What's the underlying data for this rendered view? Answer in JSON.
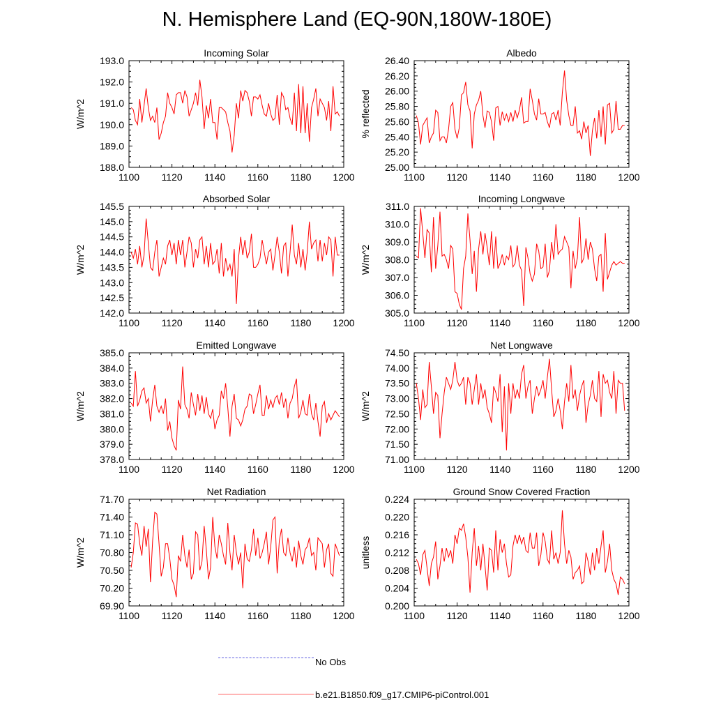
{
  "title": "N. Hemisphere Land (EQ-90N,180W-180E)",
  "legend": [
    {
      "label": "No Obs",
      "color": "#4a4ad0",
      "style": "dashed"
    },
    {
      "label": "b.e21.B1850.f09_g17.CMIP6-piControl.001",
      "color": "#ff0000",
      "style": "solid"
    }
  ],
  "chart_data": [
    {
      "type": "line",
      "title": "Incoming Solar",
      "xlabel": "",
      "ylabel": "W/m^2",
      "xlim": [
        1100,
        1200
      ],
      "ylim": [
        188.0,
        193.0
      ],
      "xticks": [
        "1100",
        "1120",
        "1140",
        "1160",
        "1180",
        "1200"
      ],
      "yticks": [
        "188.0",
        "189.0",
        "190.0",
        "191.0",
        "192.0",
        "193.0"
      ],
      "x_start": 1101,
      "color": "#ff0000",
      "values": [
        190.8,
        190.7,
        190.2,
        190.0,
        191.2,
        190.1,
        190.9,
        191.7,
        190.8,
        190.2,
        190.4,
        190.1,
        190.8,
        189.3,
        189.6,
        190.1,
        190.4,
        191.5,
        191.0,
        190.8,
        190.5,
        191.4,
        191.5,
        191.5,
        191.0,
        191.6,
        191.3,
        190.4,
        190.7,
        191.0,
        191.5,
        190.9,
        192.1,
        191.3,
        189.8,
        190.9,
        190.3,
        191.2,
        190.1,
        190.1,
        189.3,
        190.8,
        190.8,
        190.7,
        190.6,
        190.1,
        189.7,
        188.7,
        189.5,
        191.0,
        190.3,
        191.6,
        191.1,
        191.6,
        191.5,
        191.1,
        190.4,
        191.3,
        191.3,
        191.2,
        191.4,
        190.9,
        190.5,
        190.4,
        191.0,
        190.5,
        190.2,
        190.3,
        191.4,
        190.0,
        191.5,
        191.3,
        190.7,
        190.8,
        190.3,
        190.0,
        191.5,
        189.7,
        191.9,
        189.6,
        191.8,
        189.6,
        191.0,
        189.2,
        190.8,
        191.2,
        191.7,
        190.4,
        191.2,
        191.0,
        190.8,
        190.2,
        191.1,
        189.7,
        191.8,
        190.5,
        190.6,
        190.4
      ]
    },
    {
      "type": "line",
      "title": "Albedo",
      "xlabel": "",
      "ylabel": "% reflected",
      "xlim": [
        1100,
        1200
      ],
      "ylim": [
        25.0,
        26.4
      ],
      "xticks": [
        "1100",
        "1120",
        "1140",
        "1160",
        "1180",
        "1200"
      ],
      "yticks": [
        "25.00",
        "25.20",
        "25.40",
        "25.60",
        "25.80",
        "26.00",
        "26.20",
        "26.40"
      ],
      "x_start": 1101,
      "color": "#ff0000",
      "values": [
        25.68,
        25.58,
        25.3,
        25.55,
        25.6,
        25.65,
        25.32,
        25.4,
        25.45,
        25.75,
        25.72,
        25.35,
        25.4,
        25.4,
        25.32,
        25.5,
        25.8,
        25.85,
        25.5,
        25.38,
        25.52,
        25.95,
        25.98,
        26.12,
        25.82,
        25.74,
        25.25,
        25.7,
        25.82,
        25.88,
        26.0,
        25.68,
        25.52,
        25.74,
        25.72,
        25.6,
        25.35,
        25.78,
        25.8,
        25.55,
        25.73,
        25.62,
        25.7,
        25.6,
        25.72,
        25.6,
        25.75,
        25.65,
        25.75,
        25.92,
        25.58,
        25.6,
        25.6,
        26.03,
        25.88,
        25.7,
        25.62,
        25.9,
        25.7,
        25.7,
        25.72,
        25.6,
        25.52,
        25.7,
        25.72,
        25.62,
        25.75,
        25.55,
        25.98,
        26.27,
        25.88,
        25.68,
        25.55,
        25.55,
        25.8,
        25.45,
        25.48,
        25.37,
        25.6,
        25.45,
        25.55,
        25.15,
        25.48,
        25.65,
        25.38,
        25.75,
        25.4,
        25.8,
        25.3,
        25.82,
        25.84,
        25.45,
        25.5,
        25.87,
        25.5,
        25.5,
        25.55,
        25.55
      ]
    },
    {
      "type": "line",
      "title": "Absorbed Solar",
      "xlabel": "",
      "ylabel": "W/m^2",
      "xlim": [
        1100,
        1200
      ],
      "ylim": [
        142.0,
        145.5
      ],
      "xticks": [
        "1100",
        "1120",
        "1140",
        "1160",
        "1180",
        "1200"
      ],
      "yticks": [
        "142.0",
        "142.5",
        "143.0",
        "143.5",
        "144.0",
        "144.5",
        "145.0",
        "145.5"
      ],
      "x_start": 1101,
      "color": "#ff0000",
      "values": [
        144.0,
        143.8,
        144.1,
        143.6,
        144.2,
        143.5,
        143.9,
        145.1,
        144.3,
        143.5,
        143.4,
        144.0,
        144.4,
        143.2,
        143.5,
        143.8,
        143.6,
        144.2,
        144.4,
        143.9,
        144.3,
        143.6,
        144.4,
        143.9,
        144.4,
        143.5,
        144.0,
        144.5,
        144.3,
        143.5,
        144.1,
        143.8,
        144.4,
        144.5,
        143.6,
        144.2,
        143.5,
        144.3,
        143.6,
        143.7,
        144.1,
        143.3,
        144.3,
        143.2,
        143.8,
        143.4,
        143.6,
        143.2,
        144.1,
        142.3,
        143.8,
        144.5,
        143.9,
        144.4,
        143.8,
        144.0,
        144.6,
        143.5,
        143.5,
        143.6,
        143.8,
        144.4,
        144.0,
        143.6,
        144.0,
        144.1,
        143.4,
        143.9,
        144.5,
        144.0,
        143.3,
        144.2,
        144.3,
        143.2,
        144.0,
        144.9,
        143.9,
        143.6,
        144.3,
        143.5,
        144.1,
        143.4,
        144.0,
        145.0,
        144.1,
        144.3,
        144.4,
        143.7,
        144.4,
        143.7,
        144.3,
        143.9,
        144.5,
        144.4,
        143.2,
        144.5,
        143.9,
        143.9
      ]
    },
    {
      "type": "line",
      "title": "Incoming Longwave",
      "xlabel": "",
      "ylabel": "W/m^2",
      "xlim": [
        1100,
        1200
      ],
      "ylim": [
        305.0,
        311.0
      ],
      "xticks": [
        "1100",
        "1120",
        "1140",
        "1160",
        "1180",
        "1200"
      ],
      "yticks": [
        "305.0",
        "306.0",
        "307.0",
        "308.0",
        "309.0",
        "310.0",
        "311.0"
      ],
      "x_start": 1101,
      "color": "#ff0000",
      "values": [
        308.2,
        308.1,
        310.9,
        309.5,
        308.1,
        309.7,
        309.5,
        307.3,
        310.4,
        307.5,
        308.8,
        310.7,
        308.2,
        308.3,
        308.0,
        307.5,
        308.8,
        308.6,
        306.2,
        306.1,
        305.5,
        305.2,
        307.5,
        308.2,
        310.6,
        309.1,
        307.2,
        308.5,
        306.2,
        308.6,
        309.6,
        308.3,
        309.5,
        308.7,
        307.7,
        309.6,
        307.5,
        309.3,
        307.5,
        307.8,
        308.3,
        307.7,
        308.2,
        308.0,
        308.8,
        307.6,
        307.8,
        308.8,
        307.7,
        307.4,
        305.4,
        308.7,
        308.1,
        307.2,
        306.8,
        307.2,
        308.9,
        308.5,
        307.5,
        307.6,
        308.9,
        307.0,
        307.4,
        309.0,
        308.0,
        310.0,
        308.3,
        308.5,
        308.6,
        309.3,
        309.0,
        308.7,
        306.4,
        308.5,
        307.5,
        308.1,
        310.4,
        307.8,
        308.1,
        309.2,
        308.0,
        309.0,
        308.6,
        307.5,
        306.8,
        308.2,
        308.3,
        306.2,
        309.5,
        306.9,
        307.3,
        307.7,
        307.9,
        307.7,
        307.8,
        307.9,
        307.8,
        307.8
      ]
    },
    {
      "type": "line",
      "title": "Emitted Longwave",
      "xlabel": "",
      "ylabel": "W/m^2",
      "xlim": [
        1100,
        1200
      ],
      "ylim": [
        378.0,
        385.0
      ],
      "xticks": [
        "1100",
        "1120",
        "1140",
        "1160",
        "1180",
        "1200"
      ],
      "yticks": [
        "378.0",
        "379.0",
        "380.0",
        "381.0",
        "382.0",
        "383.0",
        "384.0",
        "385.0"
      ],
      "x_start": 1101,
      "color": "#ff0000",
      "values": [
        381.7,
        381.5,
        383.8,
        381.5,
        381.9,
        382.5,
        382.7,
        381.7,
        382.0,
        380.5,
        381.9,
        382.9,
        381.5,
        381.1,
        381.5,
        381.0,
        382.0,
        379.9,
        380.5,
        379.4,
        378.9,
        378.6,
        381.9,
        381.3,
        384.1,
        381.6,
        381.3,
        380.7,
        382.4,
        381.6,
        380.9,
        382.3,
        381.2,
        382.2,
        381.0,
        382.1,
        381.0,
        380.7,
        381.3,
        380.0,
        380.6,
        380.9,
        382.5,
        382.0,
        383.0,
        381.4,
        379.5,
        381.5,
        382.3,
        380.7,
        380.6,
        380.2,
        380.6,
        381.3,
        381.5,
        382.3,
        382.2,
        381.0,
        381.6,
        382.3,
        382.9,
        380.9,
        380.9,
        382.2,
        381.3,
        381.9,
        381.4,
        382.0,
        382.2,
        381.6,
        382.4,
        381.4,
        382.0,
        380.7,
        381.7,
        382.0,
        382.8,
        383.3,
        380.7,
        381.1,
        381.9,
        381.0,
        380.9,
        382.3,
        381.0,
        380.6,
        381.7,
        380.5,
        379.5,
        381.5,
        381.8,
        380.4,
        381.0,
        380.6,
        380.9,
        381.2,
        381.0,
        380.8
      ]
    },
    {
      "type": "line",
      "title": "Net Longwave",
      "xlabel": "",
      "ylabel": "W/m^2",
      "xlim": [
        1100,
        1200
      ],
      "ylim": [
        71.0,
        74.5
      ],
      "xticks": [
        "1100",
        "1120",
        "1140",
        "1160",
        "1180",
        "1200"
      ],
      "yticks": [
        "71.00",
        "71.50",
        "72.00",
        "72.50",
        "73.00",
        "73.50",
        "74.00",
        "74.50"
      ],
      "x_start": 1101,
      "color": "#ff0000",
      "values": [
        73.5,
        73.0,
        72.3,
        73.3,
        72.7,
        72.8,
        74.2,
        73.4,
        72.5,
        73.2,
        73.1,
        71.7,
        72.5,
        73.2,
        73.7,
        73.5,
        73.3,
        73.6,
        74.2,
        73.6,
        73.4,
        73.5,
        73.7,
        72.8,
        73.7,
        73.5,
        72.8,
        73.3,
        73.8,
        72.8,
        73.5,
        73.0,
        73.3,
        72.7,
        72.5,
        72.2,
        73.4,
        73.2,
        72.9,
        73.8,
        71.9,
        73.4,
        71.3,
        73.5,
        72.5,
        73.5,
        73.0,
        73.3,
        73.0,
        73.8,
        74.1,
        73.0,
        73.4,
        73.6,
        72.5,
        73.0,
        73.4,
        73.1,
        73.3,
        73.6,
        73.0,
        73.7,
        74.3,
        73.3,
        72.4,
        72.6,
        73.0,
        72.6,
        72.0,
        72.9,
        73.5,
        72.9,
        74.1,
        73.0,
        73.3,
        72.6,
        73.1,
        73.4,
        73.6,
        72.2,
        72.8,
        73.1,
        73.6,
        73.0,
        72.9,
        73.9,
        72.4,
        73.8,
        73.5,
        73.6,
        73.2,
        73.0,
        73.9,
        72.5,
        73.6,
        73.5,
        73.5,
        72.6
      ]
    },
    {
      "type": "line",
      "title": "Net Radiation",
      "xlabel": "",
      "ylabel": "W/m^2",
      "xlim": [
        1100,
        1200
      ],
      "ylim": [
        69.9,
        71.7
      ],
      "xticks": [
        "1100",
        "1120",
        "1140",
        "1160",
        "1180",
        "1200"
      ],
      "yticks": [
        "69.90",
        "70.20",
        "70.50",
        "70.80",
        "71.10",
        "71.40",
        "71.70"
      ],
      "x_start": 1101,
      "color": "#ff0000",
      "values": [
        70.55,
        70.8,
        71.3,
        71.28,
        70.95,
        70.75,
        71.25,
        70.9,
        71.2,
        70.3,
        71.0,
        71.48,
        71.45,
        70.95,
        70.4,
        70.55,
        70.95,
        70.95,
        70.7,
        70.35,
        70.25,
        70.05,
        70.75,
        70.65,
        71.1,
        70.75,
        70.55,
        70.85,
        70.35,
        70.45,
        71.15,
        71.1,
        70.5,
        70.65,
        71.25,
        70.85,
        70.35,
        70.55,
        71.4,
        70.9,
        70.7,
        71.1,
        70.95,
        70.75,
        70.6,
        71.3,
        70.8,
        70.5,
        71.1,
        70.8,
        70.6,
        70.8,
        70.2,
        70.95,
        70.7,
        70.65,
        70.85,
        71.2,
        70.75,
        71.05,
        70.7,
        70.8,
        70.95,
        71.15,
        70.6,
        70.9,
        71.35,
        71.4,
        70.45,
        71.0,
        71.2,
        70.8,
        70.75,
        71.05,
        70.8,
        70.65,
        70.9,
        70.55,
        71.0,
        70.75,
        70.6,
        70.85,
        70.9,
        71.05,
        70.75,
        70.8,
        70.5,
        71.05,
        71.0,
        70.95,
        70.55,
        70.85,
        70.95,
        70.45,
        70.4,
        70.95,
        70.85,
        70.75
      ]
    },
    {
      "type": "line",
      "title": "Ground Snow Covered Fraction",
      "xlabel": "",
      "ylabel": "unitless",
      "xlim": [
        1100,
        1200
      ],
      "ylim": [
        0.2,
        0.224
      ],
      "xticks": [
        "1100",
        "1120",
        "1140",
        "1160",
        "1180",
        "1200"
      ],
      "yticks": [
        "0.200",
        "0.204",
        "0.208",
        "0.212",
        "0.216",
        "0.220",
        "0.224"
      ],
      "x_start": 1101,
      "color": "#ff0000",
      "values": [
        0.2105,
        0.2095,
        0.207,
        0.2115,
        0.2125,
        0.2085,
        0.2045,
        0.2095,
        0.211,
        0.2145,
        0.206,
        0.209,
        0.213,
        0.21,
        0.213,
        0.211,
        0.2125,
        0.2095,
        0.216,
        0.214,
        0.2175,
        0.217,
        0.2185,
        0.2155,
        0.211,
        0.203,
        0.212,
        0.2175,
        0.209,
        0.2135,
        0.208,
        0.214,
        0.209,
        0.2035,
        0.213,
        0.2125,
        0.2075,
        0.217,
        0.208,
        0.215,
        0.212,
        0.214,
        0.2095,
        0.2065,
        0.207,
        0.2135,
        0.216,
        0.214,
        0.216,
        0.214,
        0.2155,
        0.2125,
        0.212,
        0.2165,
        0.213,
        0.213,
        0.2165,
        0.209,
        0.2115,
        0.2165,
        0.2145,
        0.2105,
        0.2095,
        0.217,
        0.2105,
        0.212,
        0.2095,
        0.212,
        0.2215,
        0.214,
        0.2095,
        0.2125,
        0.211,
        0.206,
        0.2075,
        0.208,
        0.209,
        0.205,
        0.2055,
        0.212,
        0.21,
        0.207,
        0.212,
        0.208,
        0.213,
        0.2095,
        0.2135,
        0.217,
        0.2075,
        0.21,
        0.214,
        0.208,
        0.206,
        0.205,
        0.2025,
        0.2065,
        0.206,
        0.205
      ]
    }
  ]
}
